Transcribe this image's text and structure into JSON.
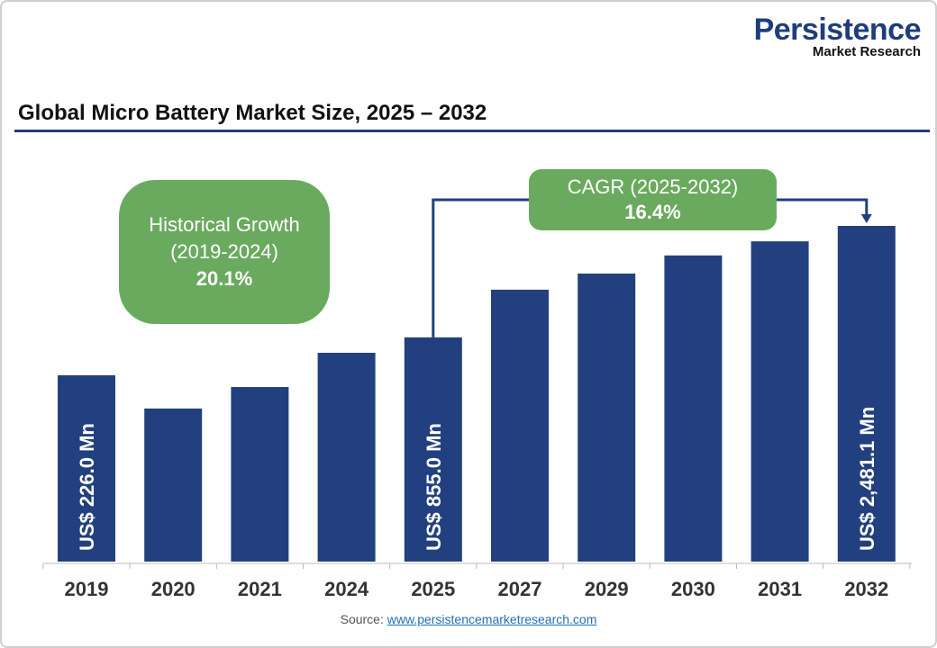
{
  "logo": {
    "line1": "Persistence",
    "line2": "Market Research"
  },
  "title": "Global Micro Battery Market Size, 2025 – 2032",
  "historical": {
    "label": "Historical Growth",
    "period": "(2019-2024)",
    "value": "20.1%"
  },
  "cagr": {
    "label": "CAGR (2025-2032)",
    "value": "16.4%"
  },
  "source": {
    "prefix": "Source: ",
    "link": "www.persistencemarketresearch.com"
  },
  "colors": {
    "bar": "#22407f",
    "callout": "#6aaa5f",
    "connector": "#22407f"
  },
  "chart_data": {
    "type": "bar",
    "categories": [
      "2019",
      "2020",
      "2021",
      "2024",
      "2025",
      "2027",
      "2029",
      "2030",
      "2031",
      "2032"
    ],
    "relative_height": [
      0.555,
      0.456,
      0.52,
      0.622,
      0.668,
      0.81,
      0.858,
      0.912,
      0.954,
      1.0
    ],
    "data_labels": [
      "US$ 226.0 Mn",
      null,
      null,
      null,
      "US$ 855.0 Mn",
      null,
      null,
      null,
      null,
      "US$ 2,481.1 Mn"
    ],
    "axis_visible": false,
    "grid": false
  }
}
